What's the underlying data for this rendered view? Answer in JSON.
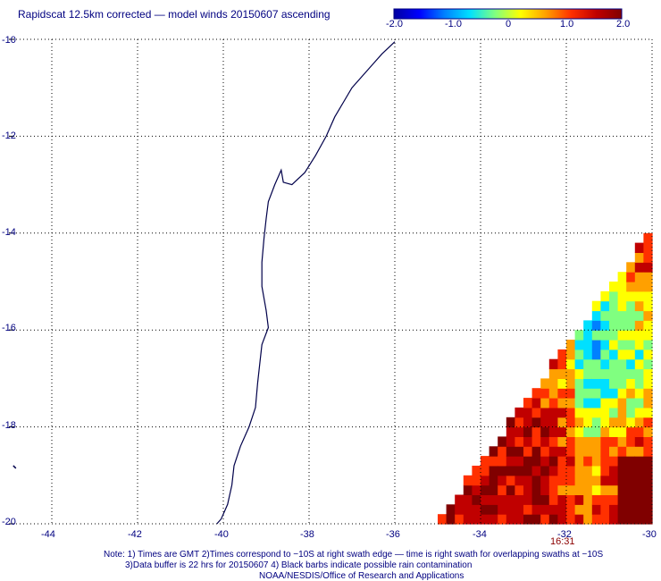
{
  "title": "Rapidscat 12.5km corrected — model winds 20150607 ascending",
  "colorbar": {
    "ticks": [
      "-2.0",
      "-1.0",
      "0",
      "1.0",
      "2.0"
    ],
    "min": -2.0,
    "max": 2.0,
    "colors": [
      "#0000a0",
      "#0000ff",
      "#0080ff",
      "#00e0ff",
      "#80ff80",
      "#ffff00",
      "#ffa000",
      "#ff3000",
      "#c00000",
      "#800000"
    ]
  },
  "axes": {
    "x_ticks": [
      "-44",
      "-42",
      "-40",
      "-38",
      "-36",
      "-34",
      "-32",
      "-30"
    ],
    "y_ticks": [
      "-10",
      "-12",
      "-14",
      "-16",
      "-18",
      "-20"
    ],
    "lon_range": [
      -45,
      -30
    ],
    "lat_range": [
      -20,
      -10
    ],
    "grid": "dotted"
  },
  "swath_time": "16:31",
  "notes": [
    "Note: 1) Times are GMT 2)Times correspond to −10S at right swath edge — time is right swath for overlapping swaths at −10S",
    "3)Data buffer is 22 hrs for 20150607 4) Black barbs indicate possible rain contamination",
    "NOAA/NESDIS/Office of Research and Applications"
  ],
  "colors": {
    "text": "#000080",
    "coastline": "#00004a",
    "grid": "#000000",
    "time_label": "#8b0000"
  }
}
